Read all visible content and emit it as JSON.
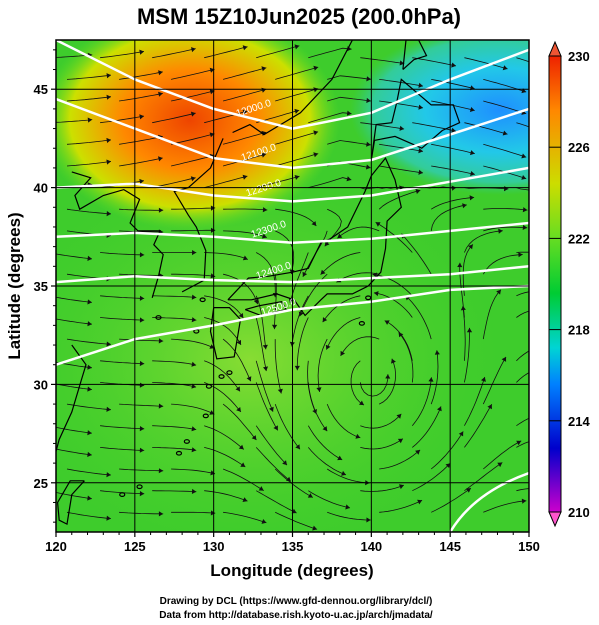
{
  "title": "MSM 15Z10Jun2025 (200.0hPa)",
  "xlabel": "Longitude (degrees)",
  "ylabel": "Latitude  (degrees)",
  "x_ticks": [
    "120",
    "125",
    "130",
    "135",
    "140",
    "145",
    "150"
  ],
  "y_ticks": [
    "25",
    "30",
    "35",
    "40",
    "45"
  ],
  "colorbar": {
    "ticks": [
      "230",
      "226",
      "222",
      "218",
      "214",
      "210"
    ],
    "range": [
      210,
      230
    ],
    "colors": [
      "#cc00cc",
      "#0000cc",
      "#0080ff",
      "#00d4d4",
      "#00cc33",
      "#66dd22",
      "#ccdd00",
      "#ff8800",
      "#ee2200"
    ]
  },
  "contour_labels": [
    "12000.0",
    "12100.0",
    "12200.0",
    "12300.0",
    "12400.0",
    "12500.0"
  ],
  "credits": {
    "line1": "Drawing by DCL (https://www.gfd-dennou.org/library/dcl/)",
    "line2": "Data from http://database.rish.kyoto-u.ac.jp/arch/jmadata/"
  },
  "chart_data": {
    "type": "heatmap",
    "variable": "temperature / wind streamlines with geopotential height contours",
    "level": "200.0hPa",
    "time": "15Z10Jun2025",
    "xlim": [
      120,
      150
    ],
    "ylim": [
      22.5,
      47.5
    ],
    "colorbar_range": [
      210,
      230
    ],
    "grid": true,
    "warm_region": {
      "lon_center": 130,
      "lat_center": 43,
      "value": 227
    },
    "cold_region": {
      "lon_center": 147,
      "lat_center": 44,
      "value": 218
    },
    "background_value": 222,
    "contour_values": [
      12000,
      12100,
      12200,
      12300,
      12400,
      12500
    ],
    "anticyclone_center": {
      "lon": 140,
      "lat": 30
    }
  }
}
